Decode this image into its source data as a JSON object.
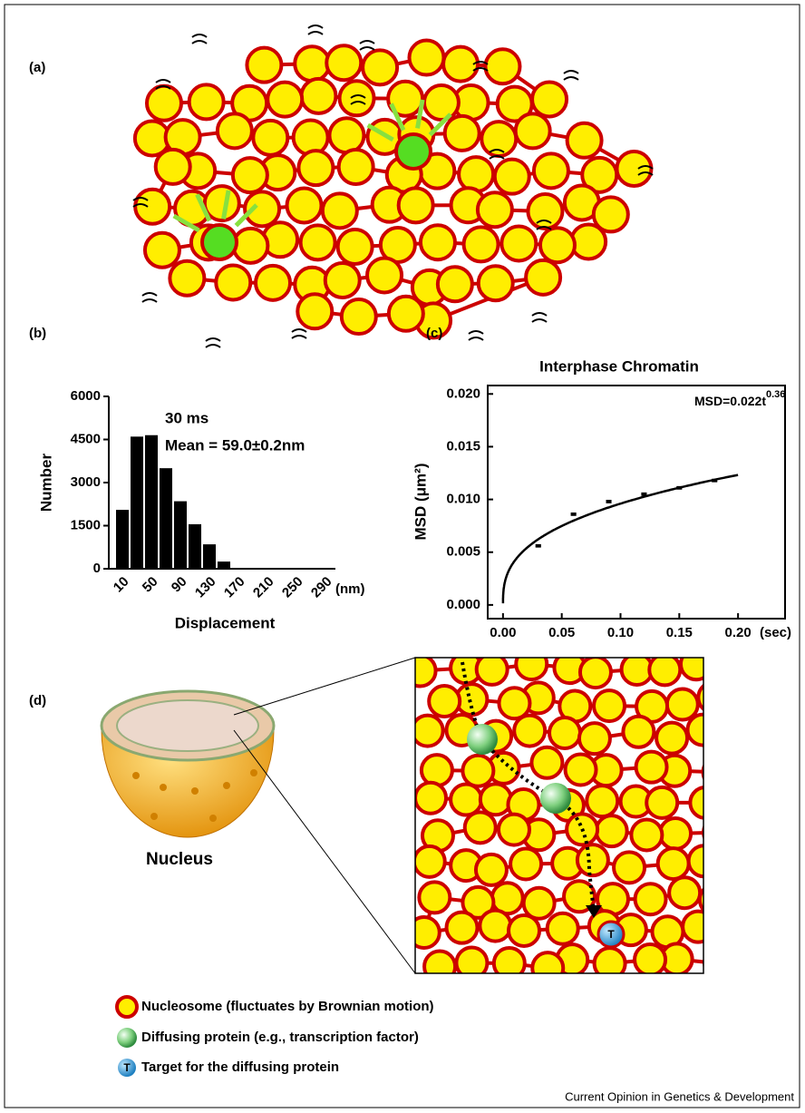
{
  "panel_labels": [
    "(a)",
    "(b)",
    "(c)",
    "(d)"
  ],
  "chart_data": [
    {
      "type": "histogram",
      "xlabel": "Displacement",
      "ylabel": "Number",
      "x_unit": "(nm)",
      "annotations": [
        "30 ms",
        "Mean = 59.0±0.2nm"
      ],
      "bins": [
        0,
        20,
        40,
        60,
        80,
        100,
        120,
        140,
        160,
        180,
        200,
        220,
        240,
        260,
        280,
        300
      ],
      "counts": [
        2050,
        4600,
        4650,
        3500,
        2350,
        1550,
        850,
        250,
        0,
        0,
        0,
        0,
        0,
        0,
        0
      ],
      "color": "#000000",
      "xlim": [
        0,
        300
      ],
      "ylim": [
        0,
        6000
      ],
      "xticks": [
        10,
        50,
        90,
        130,
        170,
        210,
        250,
        290
      ],
      "yticks": [
        0,
        1500,
        3000,
        4500,
        6000
      ]
    },
    {
      "type": "scatter",
      "title": "Interphase Chromatin",
      "ylabel": "MSD (μm²)",
      "x_unit": "(sec)",
      "x": [
        0.03,
        0.06,
        0.09,
        0.12,
        0.15,
        0.18
      ],
      "values": [
        0.0056,
        0.0086,
        0.0098,
        0.0105,
        0.0111,
        0.0118
      ],
      "errors": [
        0.0001,
        0.0001,
        0.0001,
        0.0001,
        0.0001,
        0.0001
      ],
      "color": "#000000",
      "fit": {
        "prefix": "MSD=",
        "coefficient": 0.022,
        "variable": "t",
        "exponent": 0.36
      },
      "xlim": [
        -0.013,
        0.24
      ],
      "ylim": [
        -0.0013,
        0.0208
      ],
      "xticks": [
        {
          "value": 0,
          "label": "0.00"
        },
        {
          "value": 0.05,
          "label": "0.05"
        },
        {
          "value": 0.1,
          "label": "0.10"
        },
        {
          "value": 0.15,
          "label": "0.15"
        },
        {
          "value": 0.2,
          "label": "0.20"
        }
      ],
      "yticks": [
        {
          "value": 0,
          "label": "0.000"
        },
        {
          "value": 0.005,
          "label": "0.005"
        },
        {
          "value": 0.01,
          "label": "0.010"
        },
        {
          "value": 0.015,
          "label": "0.015"
        },
        {
          "value": 0.02,
          "label": "0.020"
        }
      ]
    }
  ],
  "nucleus_label": "Nucleus",
  "legend": [
    "Nucleosome (fluctuates by Brownian motion)",
    "Diffusing protein (e.g., transcription factor)",
    "Target for the diffusing protein"
  ],
  "target_symbol": "T",
  "footer": "Current Opinion in Genetics & Development"
}
